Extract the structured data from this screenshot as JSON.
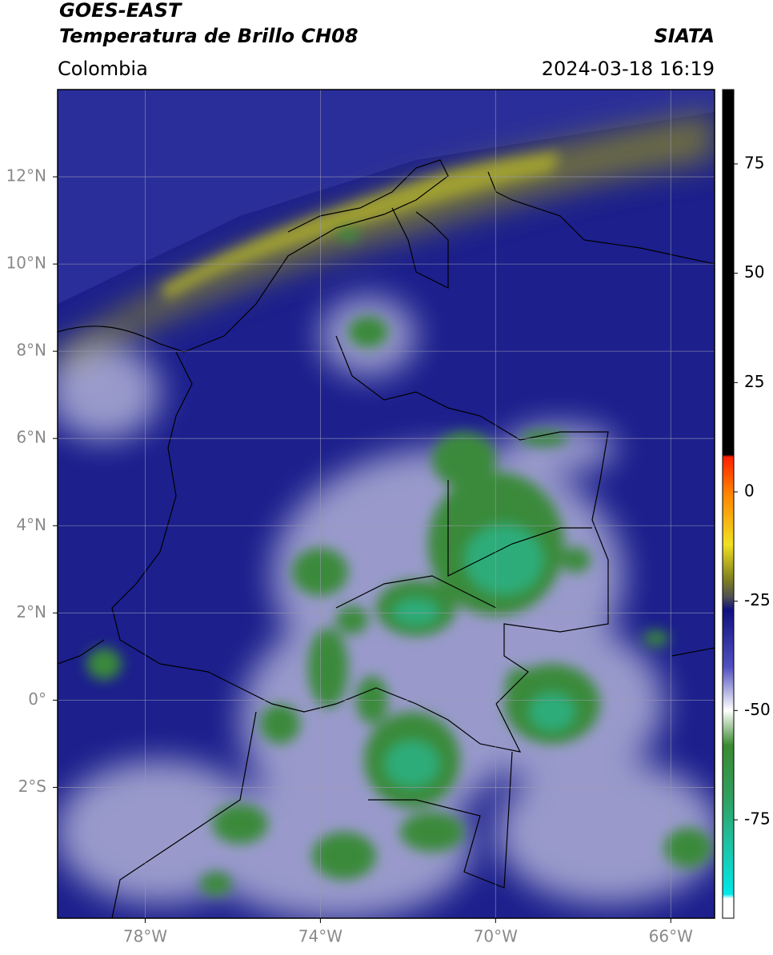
{
  "header": {
    "title": "GOES-EAST",
    "subtitle": "Temperatura de Brillo CH08",
    "source": "SIATA",
    "region": "Colombia",
    "timestamp": "2024-03-18 16:19"
  },
  "map": {
    "xlim": [
      -80,
      -65
    ],
    "ylim": [
      -5,
      14
    ],
    "xticks": [
      {
        "value": -78,
        "label": "78°W"
      },
      {
        "value": -74,
        "label": "74°W"
      },
      {
        "value": -70,
        "label": "70°W"
      },
      {
        "value": -66,
        "label": "66°W"
      }
    ],
    "yticks": [
      {
        "value": 12,
        "label": "12°N"
      },
      {
        "value": 10,
        "label": "10°N"
      },
      {
        "value": 8,
        "label": "8°N"
      },
      {
        "value": 6,
        "label": "6°N"
      },
      {
        "value": 4,
        "label": "4°N"
      },
      {
        "value": 2,
        "label": "2°N"
      },
      {
        "value": 0,
        "label": "0°"
      },
      {
        "value": -2,
        "label": "2°S"
      }
    ],
    "grid": true
  },
  "colorbar": {
    "lim": [
      -97.5,
      92
    ],
    "ticks": [
      75,
      50,
      25,
      0,
      -25,
      -50,
      -75
    ],
    "colormap": [
      {
        "value": 92,
        "color": "#000000"
      },
      {
        "value": 8.5,
        "color": "#000000"
      },
      {
        "value": 8,
        "color": "#ff2000"
      },
      {
        "value": 0,
        "color": "#ff8000"
      },
      {
        "value": -12,
        "color": "#f0e020"
      },
      {
        "value": -20,
        "color": "#808020"
      },
      {
        "value": -24,
        "color": "#505050"
      },
      {
        "value": -27,
        "color": "#101080"
      },
      {
        "value": -40,
        "color": "#5050c0"
      },
      {
        "value": -50,
        "color": "#ffffff"
      },
      {
        "value": -58,
        "color": "#3a8a30"
      },
      {
        "value": -70,
        "color": "#30a060"
      },
      {
        "value": -80,
        "color": "#20c0a0"
      },
      {
        "value": -92,
        "color": "#00e8e8"
      },
      {
        "value": -93,
        "color": "#ffffff"
      },
      {
        "value": -97.5,
        "color": "#ffffff"
      }
    ]
  }
}
